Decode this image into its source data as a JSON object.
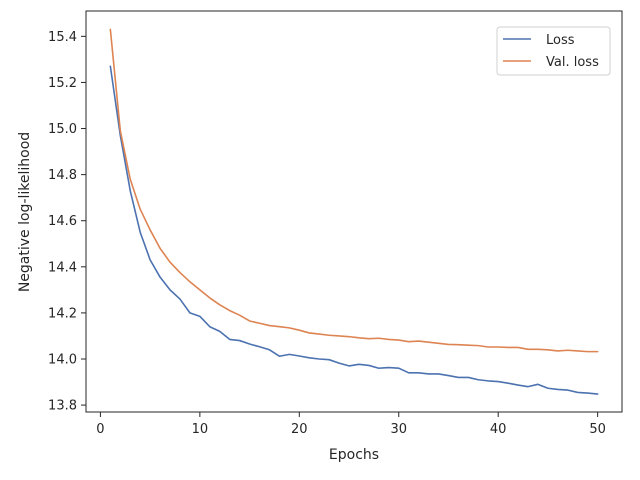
{
  "chart_data": {
    "type": "line",
    "title": "",
    "xlabel": "Epochs",
    "ylabel": "Negative log-likelihood",
    "xlim": [
      -1.45,
      52.45
    ],
    "ylim": [
      13.77,
      15.51
    ],
    "xticks": [
      0,
      10,
      20,
      30,
      40,
      50
    ],
    "yticks": [
      13.8,
      14.0,
      14.2,
      14.4,
      14.6,
      14.8,
      15.0,
      15.2,
      15.4
    ],
    "xtick_labels": [
      "0",
      "10",
      "20",
      "30",
      "40",
      "50"
    ],
    "ytick_labels": [
      "13.8",
      "14.0",
      "14.2",
      "14.4",
      "14.6",
      "14.8",
      "15.0",
      "15.2",
      "15.4"
    ],
    "grid": false,
    "legend_position": "top-right",
    "x": [
      1,
      2,
      3,
      4,
      5,
      6,
      7,
      8,
      9,
      10,
      11,
      12,
      13,
      14,
      15,
      16,
      17,
      18,
      19,
      20,
      21,
      22,
      23,
      24,
      25,
      26,
      27,
      28,
      29,
      30,
      31,
      32,
      33,
      34,
      35,
      36,
      37,
      38,
      39,
      40,
      41,
      42,
      43,
      44,
      45,
      46,
      47,
      48,
      49,
      50
    ],
    "series": [
      {
        "name": "Loss",
        "color": "#4c72b0",
        "values": [
          15.27,
          14.97,
          14.73,
          14.55,
          14.43,
          14.355,
          14.3,
          14.26,
          14.2,
          14.185,
          14.14,
          14.12,
          14.085,
          14.08,
          14.065,
          14.053,
          14.04,
          14.012,
          14.02,
          14.013,
          14.005,
          14.0,
          13.997,
          13.982,
          13.97,
          13.977,
          13.972,
          13.96,
          13.963,
          13.96,
          13.94,
          13.94,
          13.935,
          13.935,
          13.928,
          13.92,
          13.92,
          13.91,
          13.905,
          13.902,
          13.895,
          13.887,
          13.88,
          13.89,
          13.873,
          13.868,
          13.865,
          13.855,
          13.852,
          13.848
        ]
      },
      {
        "name": "Val. loss",
        "color": "#dd8452",
        "values": [
          15.43,
          14.99,
          14.78,
          14.65,
          14.56,
          14.48,
          14.42,
          14.375,
          14.335,
          14.3,
          14.265,
          14.235,
          14.21,
          14.19,
          14.165,
          14.155,
          14.145,
          14.14,
          14.135,
          14.125,
          14.113,
          14.108,
          14.103,
          14.1,
          14.097,
          14.092,
          14.088,
          14.09,
          14.085,
          14.082,
          14.075,
          14.078,
          14.073,
          14.068,
          14.063,
          14.062,
          14.06,
          14.058,
          14.052,
          14.052,
          14.05,
          14.05,
          14.042,
          14.042,
          14.04,
          14.035,
          14.038,
          14.035,
          14.032,
          14.032
        ]
      }
    ]
  }
}
